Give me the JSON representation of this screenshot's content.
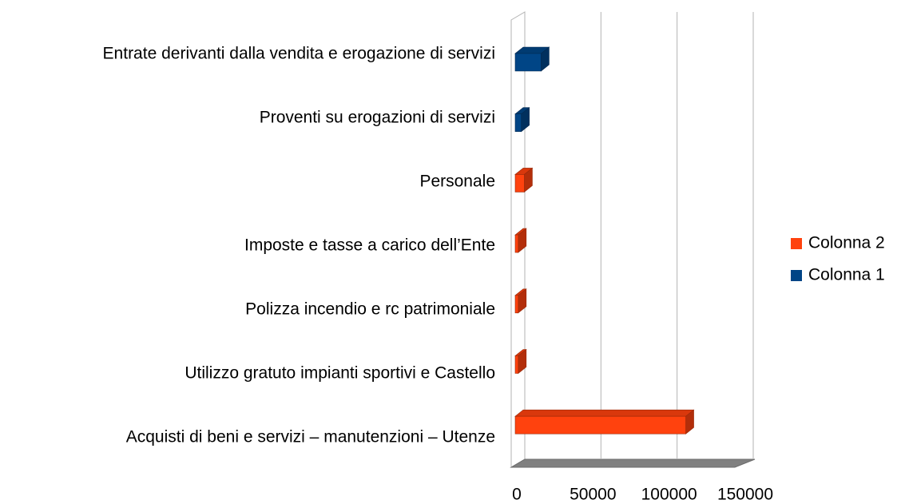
{
  "chart_data": {
    "type": "bar3d_horizontal",
    "categories": [
      "Acquisti di beni e servizi – manutenzioni – Utenze",
      "Utilizzo gratuto impianti sportivi e Castello",
      "Polizza incendio e rc patrimoniale ",
      "Imposte e tasse a carico dell’Ente ",
      "Personale",
      "Proventi su erogazioni di servizi ",
      "Entrate derivanti dalla vendita e erogazione di servizi"
    ],
    "series": [
      {
        "name": "Colonna 1",
        "color": "#004586",
        "values": [
          null,
          null,
          null,
          null,
          null,
          4000,
          17000
        ]
      },
      {
        "name": "Colonna 2",
        "color": "#ff420e",
        "values": [
          112000,
          2000,
          2000,
          2000,
          6000,
          null,
          null
        ]
      }
    ],
    "xlim": [
      0,
      150000
    ],
    "xticks": [
      0,
      50000,
      100000,
      150000
    ],
    "grid": true,
    "legend": "right"
  }
}
